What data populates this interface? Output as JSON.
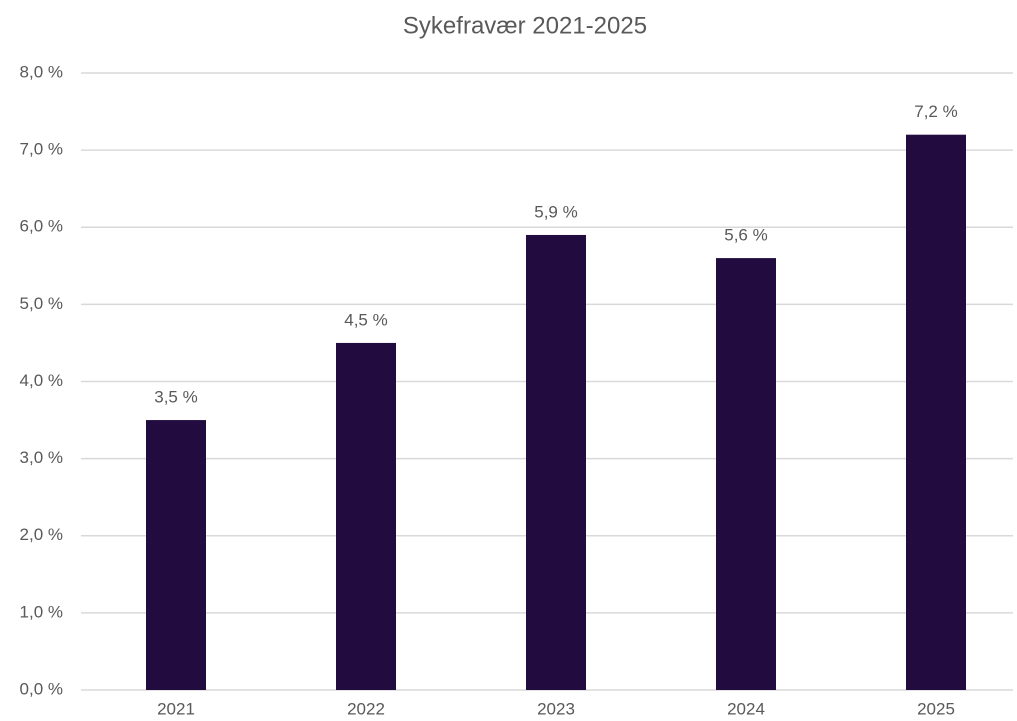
{
  "chart_data": {
    "type": "bar",
    "title": "Sykefravær 2021-2025",
    "categories": [
      "2021",
      "2022",
      "2023",
      "2024",
      "2025"
    ],
    "values": [
      3.5,
      4.5,
      5.9,
      5.6,
      7.2
    ],
    "value_labels": [
      "3,5 %",
      "4,5 %",
      "5,9 %",
      "5,6 %",
      "7,2 %"
    ],
    "color": "#210b3f",
    "ylim": [
      0,
      8
    ],
    "yticks": [
      {
        "value": 0,
        "label": "0,0 %"
      },
      {
        "value": 1,
        "label": "1,0 %"
      },
      {
        "value": 2,
        "label": "2,0 %"
      },
      {
        "value": 3,
        "label": "3,0 %"
      },
      {
        "value": 4,
        "label": "4,0 %"
      },
      {
        "value": 5,
        "label": "5,0 %"
      },
      {
        "value": 6,
        "label": "6,0 %"
      },
      {
        "value": 7,
        "label": "7,0 %"
      },
      {
        "value": 8,
        "label": "8,0 %"
      }
    ],
    "grid": true
  }
}
